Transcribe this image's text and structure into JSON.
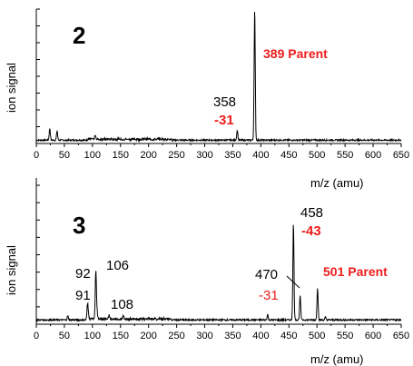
{
  "colors": {
    "accent_red": "#ee1c1c",
    "trace": "#000000"
  },
  "chart_data": [
    {
      "type": "line",
      "panel_label": "2",
      "xlabel": "m/z (amu)",
      "ylabel": "ion signal",
      "xlim": [
        0,
        650
      ],
      "xticks": [
        0,
        50,
        100,
        150,
        200,
        250,
        300,
        350,
        400,
        450,
        500,
        550,
        600,
        650
      ],
      "grid": false,
      "peaks": [
        {
          "x": 24,
          "y": 0.09
        },
        {
          "x": 37,
          "y": 0.07
        },
        {
          "x": 105,
          "y": 0.035
        },
        {
          "x": 358,
          "y": 0.075
        },
        {
          "x": 389,
          "y": 1.0
        }
      ],
      "annotations": [
        {
          "text": "389 Parent",
          "style": "red-bold"
        },
        {
          "text": "358",
          "style": "black"
        },
        {
          "text": "-31",
          "style": "red-bold"
        }
      ]
    },
    {
      "type": "line",
      "panel_label": "3",
      "xlabel": "m/z (amu)",
      "ylabel": "ion signal",
      "xlim": [
        0,
        650
      ],
      "xticks": [
        0,
        50,
        100,
        150,
        200,
        250,
        300,
        350,
        400,
        450,
        500,
        550,
        600,
        650
      ],
      "grid": false,
      "peaks": [
        {
          "x": 56,
          "y": 0.03
        },
        {
          "x": 91,
          "y": 0.08
        },
        {
          "x": 92,
          "y": 0.06
        },
        {
          "x": 106,
          "y": 0.36
        },
        {
          "x": 108,
          "y": 0.05
        },
        {
          "x": 130,
          "y": 0.025
        },
        {
          "x": 155,
          "y": 0.02
        },
        {
          "x": 412,
          "y": 0.04
        },
        {
          "x": 458,
          "y": 0.72
        },
        {
          "x": 470,
          "y": 0.18
        },
        {
          "x": 501,
          "y": 0.24
        },
        {
          "x": 515,
          "y": 0.02
        }
      ],
      "annotations": [
        {
          "text": "458",
          "style": "black"
        },
        {
          "text": "-43",
          "style": "red-bold"
        },
        {
          "text": "92",
          "style": "black"
        },
        {
          "text": "106",
          "style": "black"
        },
        {
          "text": "91",
          "style": "black"
        },
        {
          "text": "108",
          "style": "black"
        },
        {
          "text": "470",
          "style": "black"
        },
        {
          "text": "-31",
          "style": "red"
        },
        {
          "text": "501 Parent",
          "style": "red-bold"
        }
      ]
    }
  ]
}
